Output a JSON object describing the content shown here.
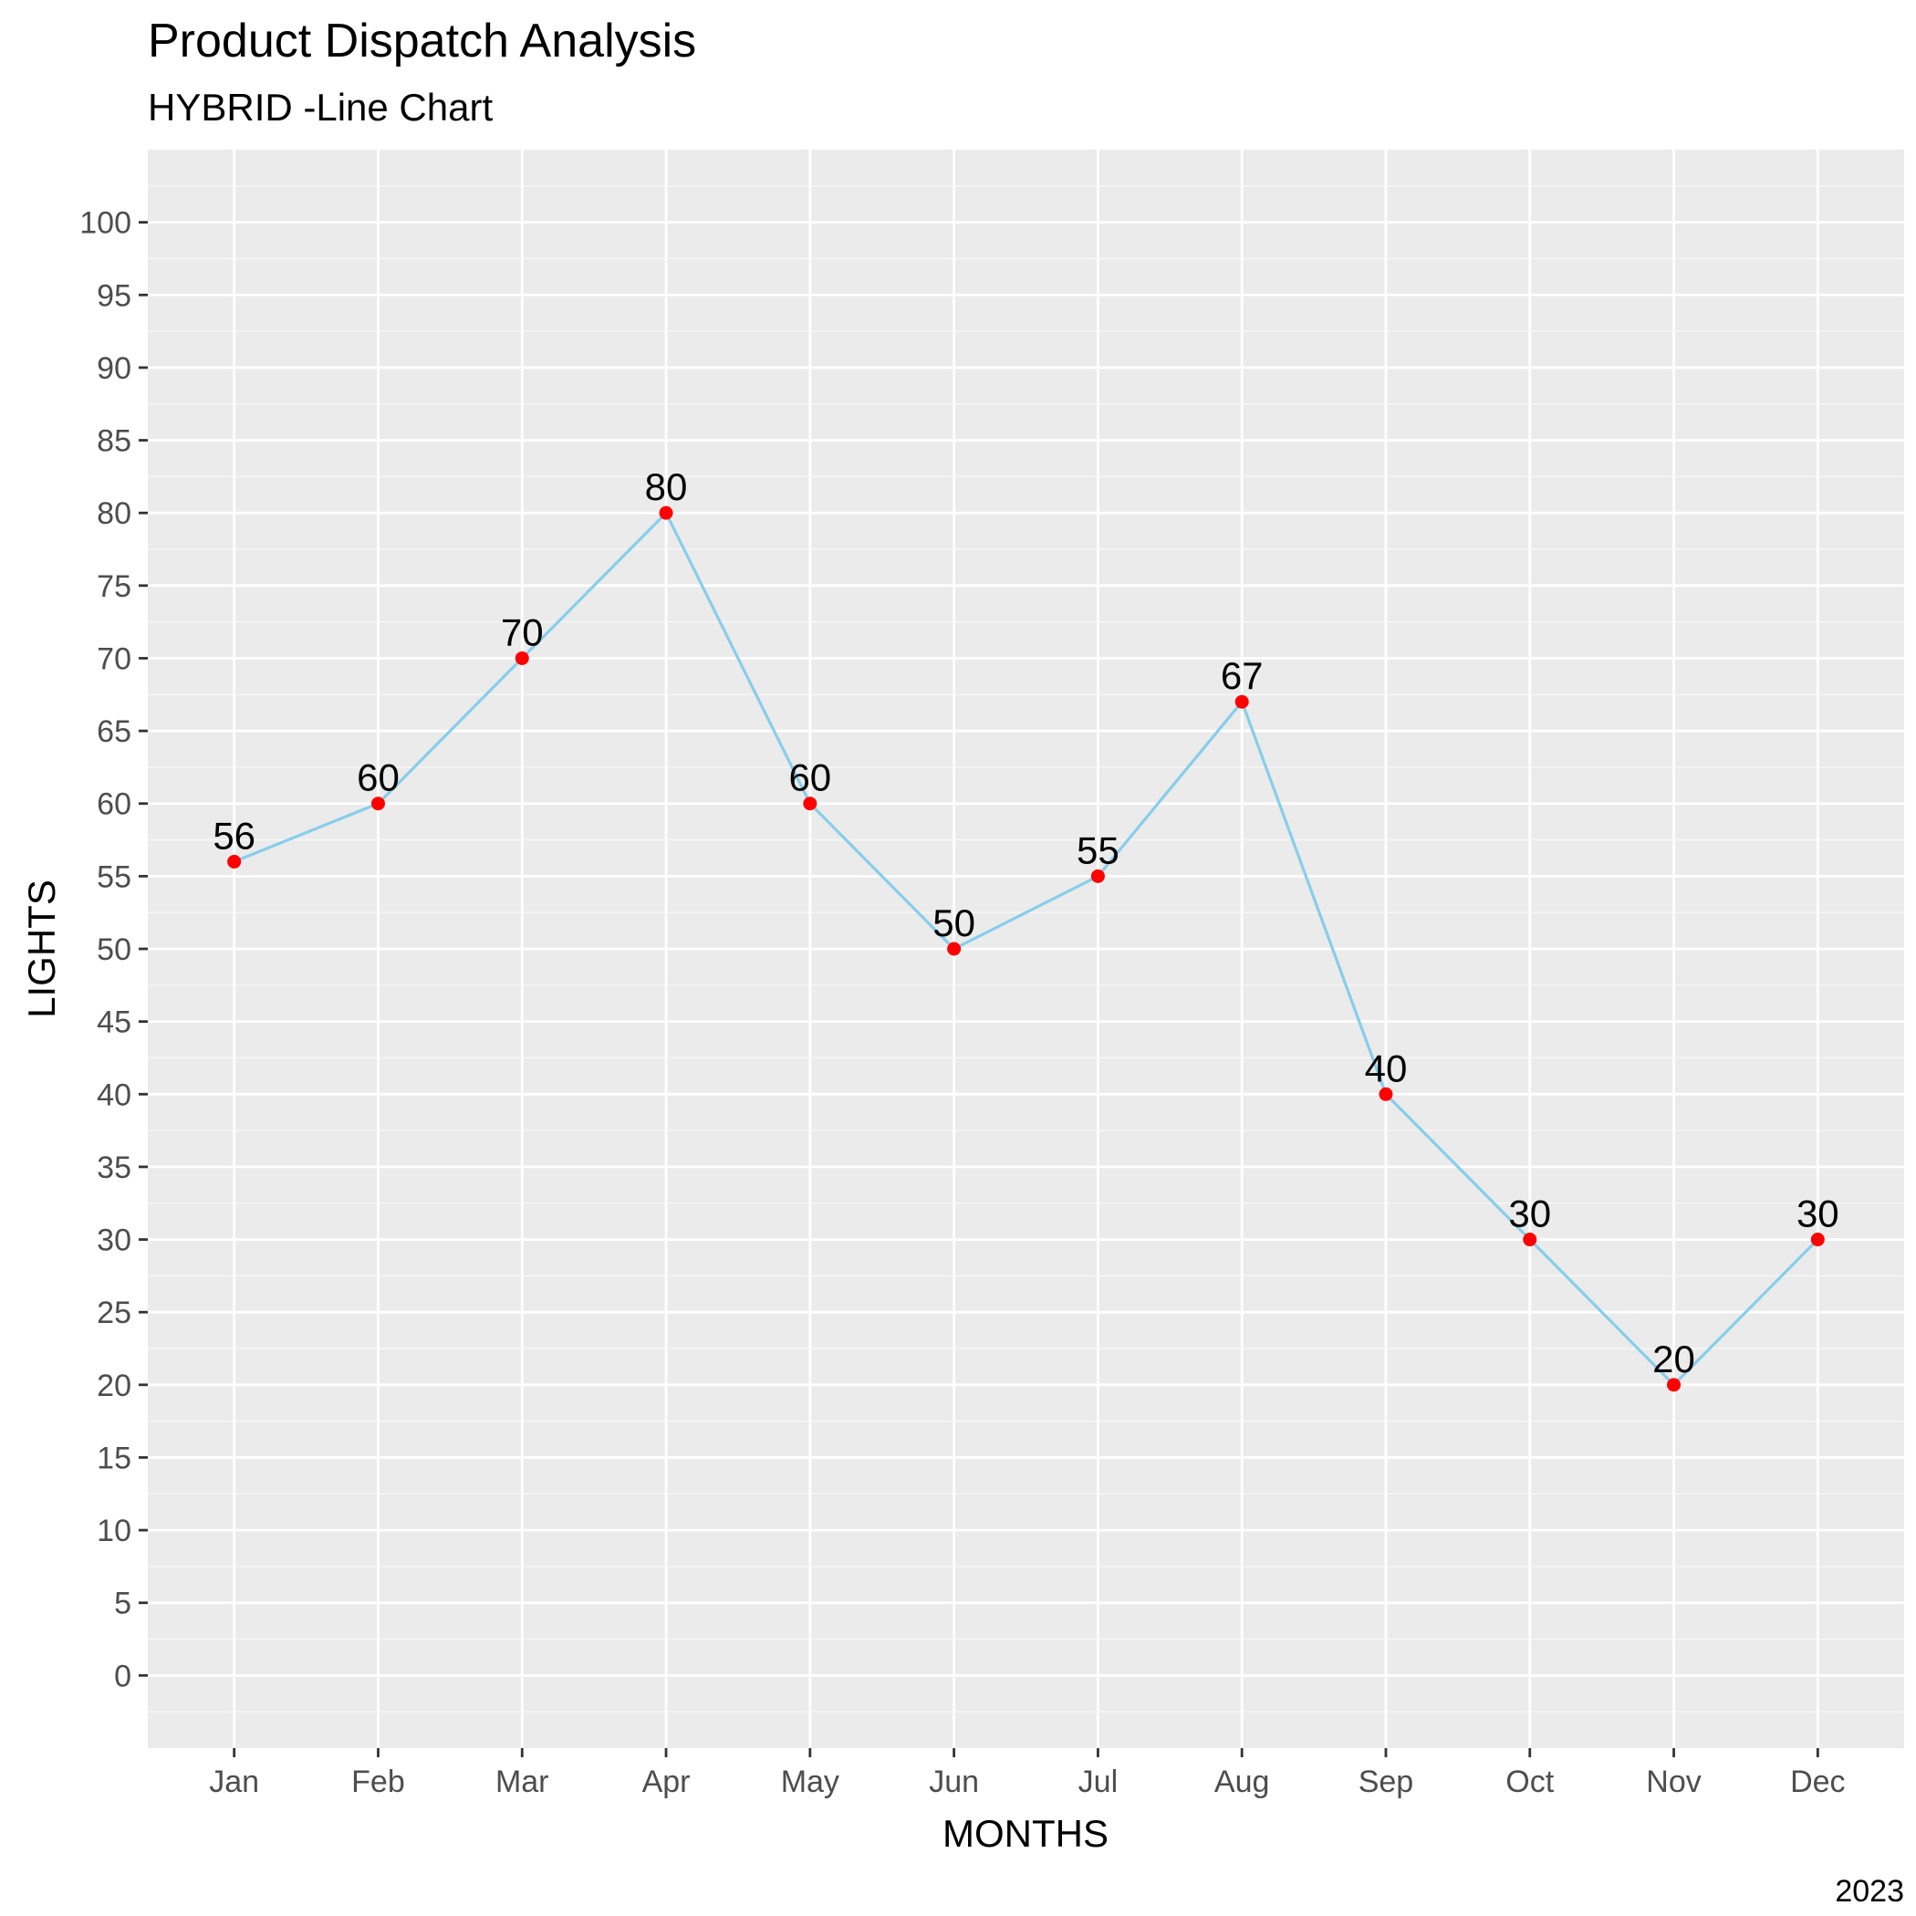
{
  "chart_data": {
    "type": "line",
    "title": "Product Dispatch Analysis",
    "subtitle": "HYBRID -Line Chart",
    "xlabel": "MONTHS",
    "ylabel": "LIGHTS",
    "caption": "2023",
    "categories": [
      "Jan",
      "Feb",
      "Mar",
      "Apr",
      "May",
      "Jun",
      "Jul",
      "Aug",
      "Sep",
      "Oct",
      "Nov",
      "Dec"
    ],
    "values": [
      56,
      60,
      70,
      80,
      60,
      50,
      55,
      67,
      40,
      30,
      20,
      30
    ],
    "data_labels": [
      "56",
      "60",
      "70",
      "80",
      "60",
      "50",
      "55",
      "67",
      "40",
      "30",
      "20",
      "30"
    ],
    "ylim": [
      -5,
      105
    ],
    "y_ticks": [
      0,
      5,
      10,
      15,
      20,
      25,
      30,
      35,
      40,
      45,
      50,
      55,
      60,
      65,
      70,
      75,
      80,
      85,
      90,
      95,
      100
    ],
    "y_tick_labels": [
      "0",
      "5",
      "10",
      "15",
      "20",
      "25",
      "30",
      "35",
      "40",
      "45",
      "50",
      "55",
      "60",
      "65",
      "70",
      "75",
      "80",
      "85",
      "90",
      "95",
      "100"
    ],
    "grid": true,
    "legend": "none",
    "colors": {
      "panel": "#ebebeb",
      "grid_major": "#ffffff",
      "line": "#87ceeb",
      "point": "#ff0000",
      "tick": "#333333"
    }
  }
}
